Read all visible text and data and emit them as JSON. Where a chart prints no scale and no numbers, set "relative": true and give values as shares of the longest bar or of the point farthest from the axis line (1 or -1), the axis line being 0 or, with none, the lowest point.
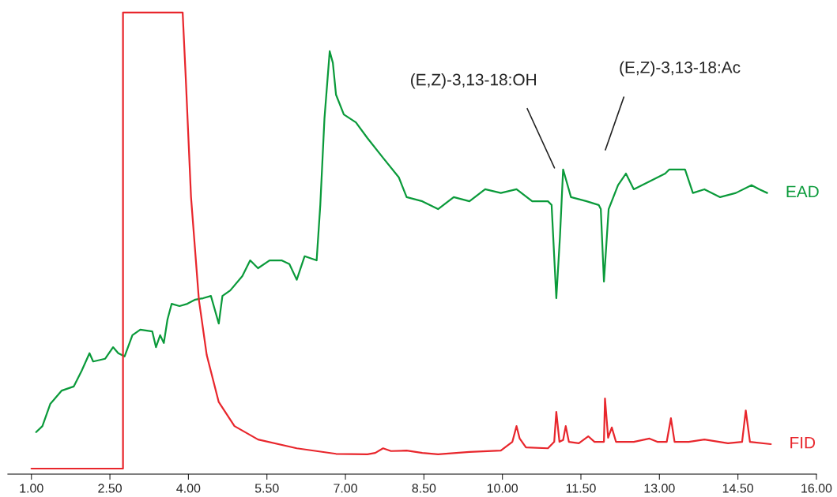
{
  "chart_data": {
    "type": "line",
    "relative": true,
    "grid": false,
    "legend": false,
    "marker": "none",
    "line_style": "solid",
    "xlim": [
      0.55,
      16
    ],
    "xticks": [
      {
        "value": 1,
        "label": "1.00"
      },
      {
        "value": 2.5,
        "label": "2.50"
      },
      {
        "value": 4,
        "label": "4.00"
      },
      {
        "value": 5.5,
        "label": "5.50"
      },
      {
        "value": 7,
        "label": "7.00"
      },
      {
        "value": 8.5,
        "label": "8.50"
      },
      {
        "value": 10,
        "label": "10.00"
      },
      {
        "value": 11.5,
        "label": "11.50"
      },
      {
        "value": 13,
        "label": "13.00"
      },
      {
        "value": 14.5,
        "label": "14.50"
      },
      {
        "value": 16,
        "label": "16.00"
      }
    ],
    "tick_labels": "x",
    "series": [
      {
        "name": "EAD",
        "color": "#0a9a3a",
        "x": [
          1.09,
          1.21,
          1.36,
          1.58,
          1.81,
          1.96,
          2.11,
          2.18,
          2.41,
          2.56,
          2.66,
          2.78,
          2.93,
          3.08,
          3.31,
          3.38,
          3.46,
          3.53,
          3.6,
          3.68,
          3.83,
          3.98,
          4.13,
          4.28,
          4.43,
          4.58,
          4.65,
          4.8,
          5.03,
          5.18,
          5.33,
          5.55,
          5.78,
          5.93,
          6.07,
          6.22,
          6.45,
          6.52,
          6.6,
          6.7,
          6.76,
          6.82,
          6.97,
          7.2,
          7.42,
          7.72,
          8.02,
          8.17,
          8.47,
          8.77,
          9.07,
          9.37,
          9.67,
          9.97,
          10.27,
          10.57,
          10.87,
          10.94,
          11.03,
          11.1,
          11.16,
          11.31,
          11.61,
          11.84,
          11.88,
          11.94,
          12.03,
          12.21,
          12.36,
          12.51,
          12.81,
          13.11,
          13.19,
          13.49,
          13.64,
          13.86,
          14.16,
          14.46,
          14.76,
          14.91,
          15.06
        ],
        "values": [
          0.091,
          0.104,
          0.152,
          0.181,
          0.19,
          0.224,
          0.262,
          0.244,
          0.25,
          0.275,
          0.262,
          0.255,
          0.301,
          0.313,
          0.309,
          0.275,
          0.301,
          0.284,
          0.335,
          0.369,
          0.364,
          0.369,
          0.378,
          0.381,
          0.386,
          0.326,
          0.386,
          0.398,
          0.429,
          0.463,
          0.446,
          0.463,
          0.463,
          0.455,
          0.421,
          0.472,
          0.463,
          0.583,
          0.771,
          0.916,
          0.891,
          0.822,
          0.779,
          0.762,
          0.728,
          0.685,
          0.643,
          0.6,
          0.591,
          0.574,
          0.6,
          0.591,
          0.617,
          0.609,
          0.617,
          0.591,
          0.591,
          0.583,
          0.381,
          0.515,
          0.66,
          0.6,
          0.591,
          0.583,
          0.574,
          0.417,
          0.574,
          0.626,
          0.651,
          0.617,
          0.634,
          0.651,
          0.66,
          0.66,
          0.609,
          0.617,
          0.6,
          0.609,
          0.626,
          0.617,
          0.609
        ]
      },
      {
        "name": "FID",
        "color": "#e8262c",
        "x": [
          1.0,
          2.75,
          2.75,
          3.89,
          3.95,
          4.05,
          4.2,
          4.35,
          4.58,
          4.88,
          5.33,
          6.07,
          6.82,
          7.42,
          7.57,
          7.72,
          7.87,
          8.17,
          8.47,
          8.77,
          9.37,
          9.97,
          10.19,
          10.27,
          10.33,
          10.45,
          10.87,
          10.99,
          11.03,
          11.09,
          11.16,
          11.21,
          11.27,
          11.46,
          11.64,
          11.76,
          11.94,
          11.96,
          12.02,
          12.09,
          12.17,
          12.51,
          12.81,
          12.96,
          13.14,
          13.22,
          13.29,
          13.56,
          13.86,
          14.31,
          14.58,
          14.65,
          14.73,
          15.13
        ],
        "values": [
          0.012,
          0.012,
          1.0,
          1.0,
          0.856,
          0.6,
          0.378,
          0.258,
          0.156,
          0.104,
          0.075,
          0.056,
          0.044,
          0.043,
          0.046,
          0.056,
          0.05,
          0.051,
          0.046,
          0.043,
          0.048,
          0.051,
          0.07,
          0.104,
          0.077,
          0.058,
          0.056,
          0.07,
          0.135,
          0.07,
          0.074,
          0.104,
          0.07,
          0.067,
          0.082,
          0.07,
          0.07,
          0.164,
          0.079,
          0.101,
          0.07,
          0.07,
          0.077,
          0.07,
          0.07,
          0.121,
          0.07,
          0.07,
          0.075,
          0.067,
          0.07,
          0.138,
          0.07,
          0.065
        ]
      }
    ],
    "annotations": [
      "(E,Z)-3,13-18:OH",
      "(E,Z)-3,13-18:Ac"
    ]
  }
}
